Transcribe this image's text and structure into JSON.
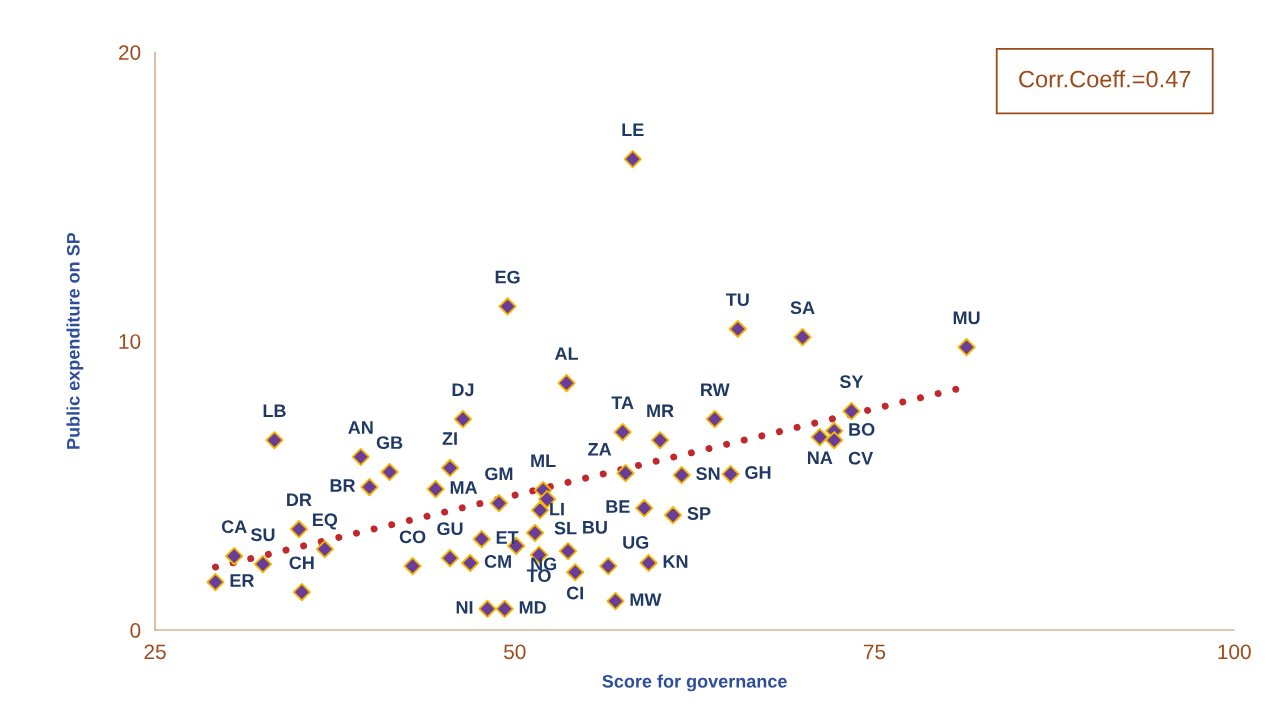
{
  "chart_data": {
    "type": "scatter",
    "xlabel": "Score for governance",
    "ylabel": "Public expenditure on SP",
    "xlim": [
      25,
      100
    ],
    "xticks": [
      25,
      50,
      75,
      100
    ],
    "ylim": [
      0,
      20
    ],
    "yticks": [
      0,
      10,
      20
    ],
    "grid": false,
    "legend": false,
    "marker": "diamond",
    "series": [
      {
        "color": "#6a3d9a",
        "x": [
          29.2,
          30.5,
          32.5,
          35.2,
          35.0,
          36.8,
          33.3,
          39.3,
          39.9,
          41.3,
          42.9,
          44.5,
          45.5,
          45.5,
          46.9,
          47.7,
          46.4,
          48.1,
          49.3,
          48.9,
          50.1,
          49.5,
          51.97,
          52.25,
          51.76,
          51.41,
          51.69,
          53.7,
          54.2,
          53.6,
          56.5,
          57.0,
          58.2,
          57.5,
          57.7,
          59.0,
          59.3,
          60.1,
          61.6,
          61.0,
          63.9,
          65.0,
          65.5,
          70.0,
          71.2,
          72.2,
          72.2,
          73.4,
          81.4
        ],
        "values": [
          1.66,
          2.56,
          2.28,
          1.31,
          3.49,
          2.8,
          6.57,
          5.99,
          4.95,
          5.47,
          2.21,
          4.88,
          5.61,
          2.49,
          2.32,
          3.15,
          7.3,
          0.73,
          0.73,
          4.39,
          2.91,
          11.2,
          4.84,
          4.53,
          4.15,
          3.36,
          2.6,
          2.73,
          2.0,
          8.55,
          2.21,
          1.0,
          16.3,
          6.85,
          5.43,
          4.22,
          2.32,
          6.57,
          5.36,
          3.98,
          7.3,
          5.4,
          10.42,
          10.14,
          6.68,
          6.89,
          6.57,
          7.58,
          9.79
        ]
      },
      {
        "type": "line",
        "color": "#c0282d",
        "line_style": "dotted",
        "marker": "none",
        "x": [
          29.2,
          80.7
        ],
        "values": [
          2.18,
          8.34
        ]
      }
    ],
    "annotations": [
      "Corr.Coeff.=0.47",
      {
        "text": "ER",
        "x": 29.2,
        "y": 1.66
      },
      {
        "text": "CA",
        "x": 30.5,
        "y": 2.56
      },
      {
        "text": "SU",
        "x": 32.5,
        "y": 2.28
      },
      {
        "text": "CH",
        "x": 35.2,
        "y": 1.31
      },
      {
        "text": "DR",
        "x": 35.0,
        "y": 3.49
      },
      {
        "text": "EQ",
        "x": 36.8,
        "y": 2.8
      },
      {
        "text": "LB",
        "x": 33.3,
        "y": 6.57
      },
      {
        "text": "AN",
        "x": 39.3,
        "y": 5.99
      },
      {
        "text": "BR",
        "x": 39.9,
        "y": 4.95
      },
      {
        "text": "GB",
        "x": 41.3,
        "y": 5.47
      },
      {
        "text": "CO",
        "x": 42.9,
        "y": 2.21
      },
      {
        "text": "MA",
        "x": 44.5,
        "y": 4.88
      },
      {
        "text": "ZI",
        "x": 45.5,
        "y": 5.61
      },
      {
        "text": "GU",
        "x": 45.5,
        "y": 2.49
      },
      {
        "text": "CM",
        "x": 46.9,
        "y": 2.32
      },
      {
        "text": "ET",
        "x": 47.7,
        "y": 3.15
      },
      {
        "text": "DJ",
        "x": 46.4,
        "y": 7.3
      },
      {
        "text": "NI",
        "x": 48.1,
        "y": 0.73
      },
      {
        "text": "MD",
        "x": 49.3,
        "y": 0.73
      },
      {
        "text": "GM",
        "x": 48.9,
        "y": 4.39
      },
      {
        "text": "NG",
        "x": 50.1,
        "y": 2.91
      },
      {
        "text": "EG",
        "x": 49.5,
        "y": 11.2
      },
      {
        "text": "ML",
        "x": 51.97,
        "y": 4.84
      },
      {
        "text": "SL",
        "x": 51.76,
        "y": 4.15
      },
      {
        "text": "LI",
        "x": 51.41,
        "y": 3.36
      },
      {
        "text": "TO",
        "x": 51.69,
        "y": 2.6
      },
      {
        "text": "BU",
        "x": 53.7,
        "y": 2.73
      },
      {
        "text": "CI",
        "x": 54.2,
        "y": 2.0
      },
      {
        "text": "AL",
        "x": 53.6,
        "y": 8.55
      },
      {
        "text": "UG",
        "x": 56.5,
        "y": 2.21
      },
      {
        "text": "MW",
        "x": 57.0,
        "y": 1.0
      },
      {
        "text": "LE",
        "x": 58.2,
        "y": 16.3
      },
      {
        "text": "TA",
        "x": 57.5,
        "y": 6.85
      },
      {
        "text": "ZA",
        "x": 57.7,
        "y": 5.43
      },
      {
        "text": "BE",
        "x": 59.0,
        "y": 4.22
      },
      {
        "text": "KN",
        "x": 59.3,
        "y": 2.32
      },
      {
        "text": "MR",
        "x": 60.1,
        "y": 6.57
      },
      {
        "text": "SN",
        "x": 61.6,
        "y": 5.36
      },
      {
        "text": "SP",
        "x": 61.0,
        "y": 3.98
      },
      {
        "text": "RW",
        "x": 63.9,
        "y": 7.3
      },
      {
        "text": "GH",
        "x": 65.0,
        "y": 5.4
      },
      {
        "text": "TU",
        "x": 65.5,
        "y": 10.42
      },
      {
        "text": "SA",
        "x": 70.0,
        "y": 10.14
      },
      {
        "text": "NA",
        "x": 71.2,
        "y": 6.68
      },
      {
        "text": "BO",
        "x": 72.2,
        "y": 6.89
      },
      {
        "text": "CV",
        "x": 72.2,
        "y": 6.57
      },
      {
        "text": "SY",
        "x": 73.4,
        "y": 7.58
      },
      {
        "text": "MU",
        "x": 81.4,
        "y": 9.79
      }
    ]
  }
}
